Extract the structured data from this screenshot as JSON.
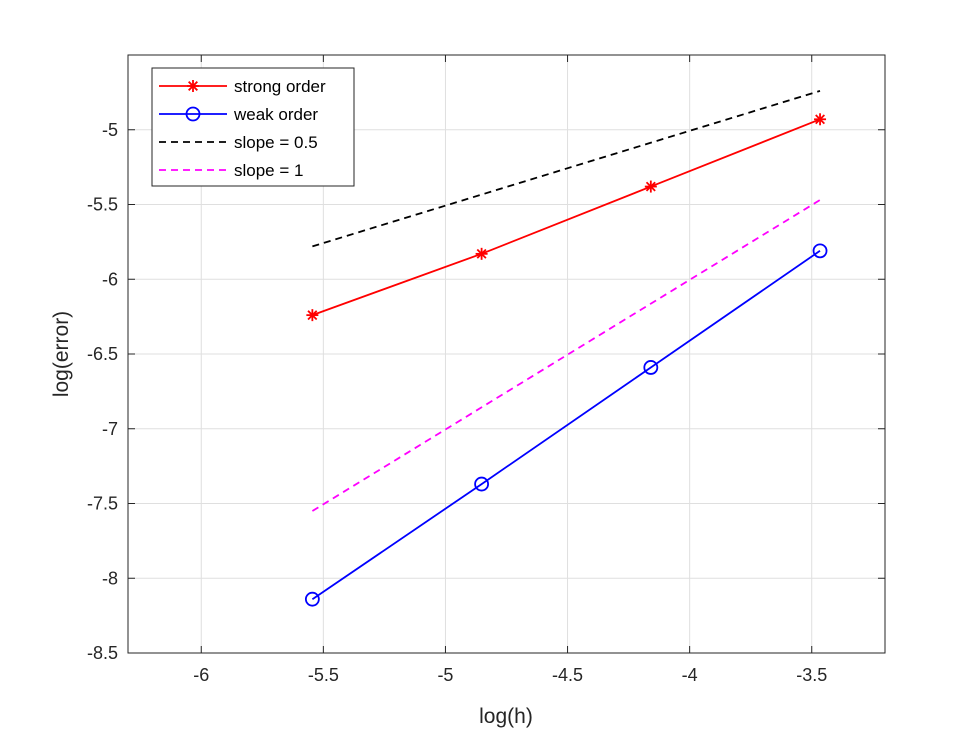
{
  "chart_data": {
    "type": "line",
    "title": "",
    "xlabel": "log(h)",
    "ylabel": "log(error)",
    "xlim": [
      -6.3,
      -3.2
    ],
    "ylim": [
      -8.5,
      -4.5
    ],
    "xticks": [
      -6,
      -5.5,
      -5,
      -4.5,
      -4,
      -3.5
    ],
    "yticks": [
      -8.5,
      -8,
      -7.5,
      -7,
      -6.5,
      -6,
      -5.5,
      -5
    ],
    "xtick_labels": [
      "-6",
      "-5.5",
      "-5",
      "-4.5",
      "-4",
      "-3.5"
    ],
    "ytick_labels": [
      "-8.5",
      "-8",
      "-7.5",
      "-7",
      "-6.5",
      "-6",
      "-5.5",
      "-5"
    ],
    "grid": true,
    "legend_position": "top-left",
    "series": [
      {
        "name": "strong order",
        "color": "#ff0000",
        "marker": "asterisk",
        "line": "solid",
        "x": [
          -5.545,
          -4.852,
          -4.159,
          -3.466
        ],
        "y": [
          -6.24,
          -5.83,
          -5.38,
          -4.93
        ]
      },
      {
        "name": "weak order",
        "color": "#0000ff",
        "marker": "circle",
        "line": "solid",
        "x": [
          -5.545,
          -4.852,
          -4.159,
          -3.466
        ],
        "y": [
          -8.14,
          -7.37,
          -6.59,
          -5.81
        ]
      },
      {
        "name": "slope = 0.5",
        "color": "#000000",
        "marker": "none",
        "line": "dashed",
        "x": [
          -5.545,
          -3.466
        ],
        "y": [
          -5.78,
          -4.74
        ]
      },
      {
        "name": "slope = 1",
        "color": "#ff00ff",
        "marker": "none",
        "line": "dashed",
        "x": [
          -5.545,
          -3.466
        ],
        "y": [
          -7.55,
          -5.47
        ]
      }
    ]
  }
}
